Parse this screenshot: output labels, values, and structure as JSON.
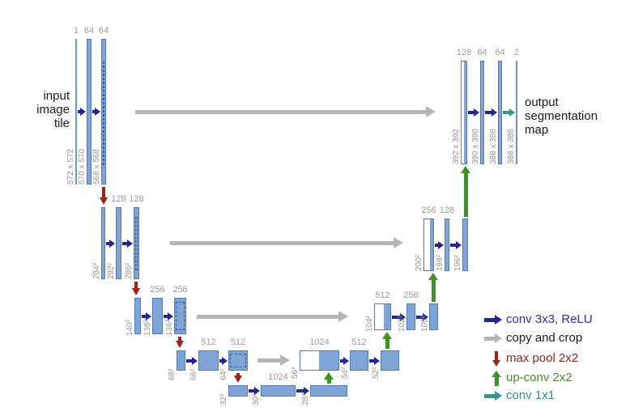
{
  "figure": {
    "type": "u-net-architecture",
    "input_label_lines": [
      "input",
      "image",
      "tile"
    ],
    "output_label_lines": [
      "output",
      "segmentation",
      "map"
    ]
  },
  "network": {
    "groups": [
      {
        "id": "enc1",
        "bars": [
          {
            "channels": "1",
            "size": "572 x 572"
          },
          {
            "channels": "64",
            "size": "570 x 570"
          },
          {
            "channels": "64",
            "size": "568 x 568"
          }
        ]
      },
      {
        "id": "enc2",
        "bars": [
          {
            "size": "284²"
          },
          {
            "channels": "128",
            "size": "282²"
          },
          {
            "channels": "128",
            "size": "280²"
          }
        ]
      },
      {
        "id": "enc3",
        "bars": [
          {
            "size": "140²"
          },
          {
            "channels": "256",
            "size": "138²"
          },
          {
            "channels": "256",
            "size": "136²"
          }
        ]
      },
      {
        "id": "enc4",
        "bars": [
          {
            "size": "68²"
          },
          {
            "channels": "512",
            "size": "66²"
          },
          {
            "channels": "512",
            "size": "64²"
          }
        ]
      },
      {
        "id": "bottleneck",
        "bars": [
          {
            "size": "32²"
          },
          {
            "channels": "1024",
            "size": "30²"
          },
          {
            "size": "28²"
          }
        ]
      },
      {
        "id": "dec4",
        "bars": [
          {
            "channels": "1024",
            "size": "56²"
          },
          {
            "channels": "512",
            "size": "54²"
          },
          {
            "size": "52²"
          }
        ]
      },
      {
        "id": "dec3",
        "bars": [
          {
            "channels": "512",
            "size": "104²"
          },
          {
            "channels": "256",
            "size": "102²"
          },
          {
            "size": "100²"
          }
        ]
      },
      {
        "id": "dec2",
        "bars": [
          {
            "channels": "256",
            "size": "200²"
          },
          {
            "channels": "128",
            "size": "198²"
          },
          {
            "size": "196²"
          }
        ]
      },
      {
        "id": "dec1",
        "bars": [
          {
            "channels": "128",
            "size": "392 x 392"
          },
          {
            "channels": "64",
            "size": "390 x 390"
          },
          {
            "channels": "64",
            "size": "388 x 388"
          },
          {
            "channels": "2",
            "size": "388 x 388"
          }
        ]
      }
    ]
  },
  "legend": {
    "items": [
      {
        "label": "conv 3x3, ReLU",
        "arrow": "right",
        "arrow_name": "conv3x3-arrow-icon",
        "color": "#1f2699",
        "text_color": "#2a2ab5"
      },
      {
        "label": "copy and crop",
        "arrow": "right",
        "arrow_name": "copy-crop-arrow-icon",
        "color": "#b5b5b5",
        "text_color": "#1a1a1a"
      },
      {
        "label": "max pool 2x2",
        "arrow": "down",
        "arrow_name": "max-pool-arrow-icon",
        "color": "#9e2217",
        "text_color": "#9e2217"
      },
      {
        "label": "up-conv 2x2",
        "arrow": "up",
        "arrow_name": "up-conv-arrow-icon",
        "color": "#3f9322",
        "text_color": "#3f9322"
      },
      {
        "label": "conv 1x1",
        "arrow": "right",
        "arrow_name": "conv1x1-arrow-icon",
        "color": "#339494",
        "text_color": "#2e8f8f"
      }
    ]
  },
  "colors": {
    "bar_fill": "#7fa5d6",
    "bar_border": "#4f7cb8",
    "thin_bar": "#6d95cd",
    "dash": "#2c5ca5",
    "concat_white": "#ffffff",
    "conv_arrow": "#1f2699",
    "copy_arrow": "#b5b5b5",
    "pool_arrow": "#9e2217",
    "upconv_arrow": "#3f9322",
    "conv1x1_arrow": "#339494",
    "channel_label": "#9b9b9b",
    "size_label": "#959595",
    "text": "#1a1a1a",
    "background": "#ffffff"
  }
}
